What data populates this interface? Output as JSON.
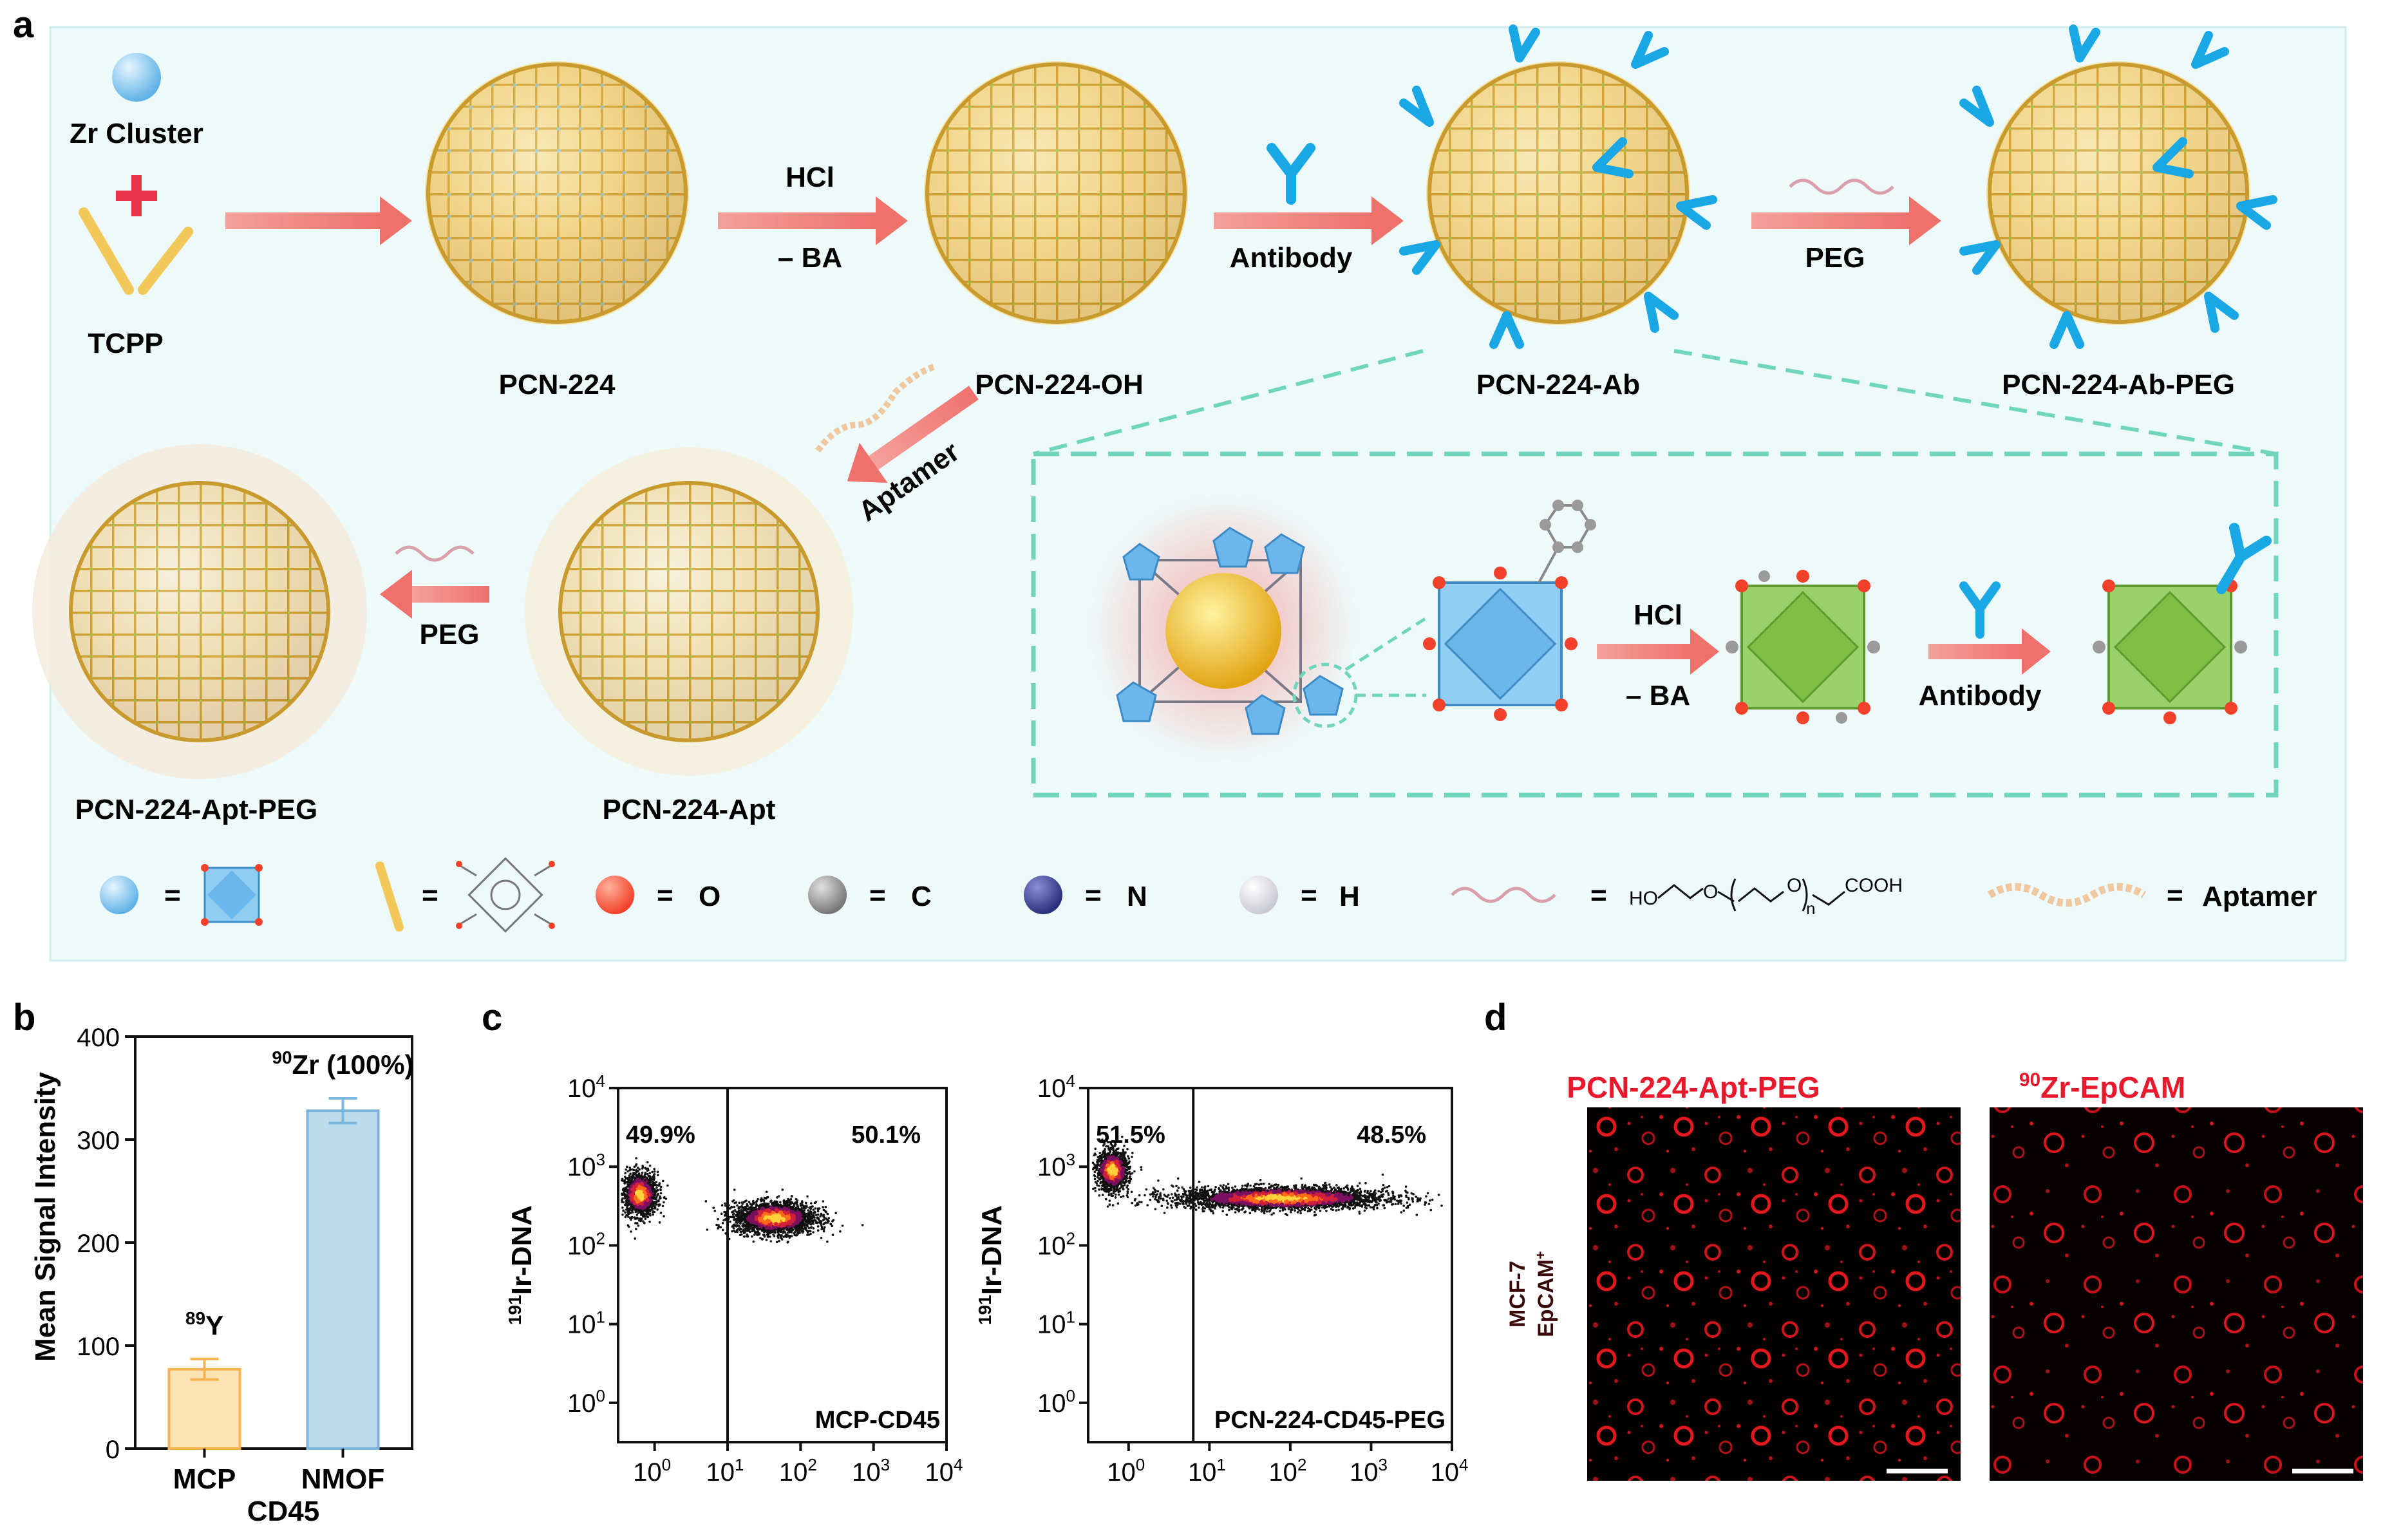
{
  "figure": {
    "panel_labels": {
      "a": "a",
      "b": "b",
      "c": "c",
      "d": "d"
    },
    "scheme": {
      "reagents": {
        "zr_cluster": "Zr Cluster",
        "tcpp": "TCPP"
      },
      "arrows": {
        "hcl": "HCl",
        "minus_ba": "– BA",
        "antibody": "Antibody",
        "peg": "PEG",
        "aptamer": "Aptamer",
        "peg2": "PEG"
      },
      "products": {
        "pcn224": "PCN-224",
        "pcn224_oh": "PCN-224-OH",
        "pcn224_ab": "PCN-224-Ab",
        "pcn224_ab_peg": "PCN-224-Ab-PEG",
        "pcn224_apt": "PCN-224-Apt",
        "pcn224_apt_peg": "PCN-224-Apt-PEG"
      },
      "inset": {
        "hcl": "HCl",
        "minus_ba": "– BA",
        "antibody": "Antibody"
      },
      "legend": {
        "eq": "=",
        "o": "O",
        "c": "C",
        "n": "N",
        "h": "H",
        "aptamer": "Aptamer",
        "peg_formula": {
          "ho": "HO",
          "o1": "O",
          "o2": "O",
          "n": "n",
          "cooh": "COOH"
        }
      },
      "colors": {
        "frame_bg": "#eefafa",
        "frame_border": "#b9e6e3",
        "arrow": "#f0827e",
        "framework_gold": "#e8b84a",
        "node_green": "#8bc34a",
        "node_blue": "#7fc4ec",
        "antibody": "#1aa7e6",
        "inset_dash": "#6fd6bd"
      }
    },
    "panel_b": {
      "chart_data": {
        "type": "bar",
        "categories": [
          "MCP",
          "NMOF"
        ],
        "group_label": "CD45",
        "values": [
          77,
          328
        ],
        "errors": [
          10,
          12
        ],
        "colors": [
          "#fde2b4",
          "#bcdcee"
        ],
        "edge_colors": [
          "#f4b34f",
          "#7bb6dd"
        ],
        "bar_labels": [
          {
            "pre": "89",
            "main": "Y"
          },
          {
            "pre": "90",
            "main": "Zr (100%)"
          }
        ],
        "ylabel": "Mean Signal Intensity",
        "ylim": [
          0,
          400
        ],
        "yticks": [
          "0",
          "100",
          "200",
          "300",
          "400"
        ]
      }
    },
    "panel_c": {
      "chart_data": [
        {
          "type": "scatter",
          "label": "MCP-CD45",
          "gate_x_log": 1.0,
          "left_pct": "49.9%",
          "right_pct": "50.1%",
          "ylabel": {
            "pre": "191",
            "main": "Ir-DNA"
          },
          "xlim_log": [
            -0.5,
            4
          ],
          "ylim_log": [
            -0.5,
            4
          ],
          "clusters": [
            {
              "x_log": -0.2,
              "y_log": 2.65,
              "sx": 0.12,
              "sy": 0.14,
              "n": 1400
            },
            {
              "x_log": 1.65,
              "y_log": 2.35,
              "sx": 0.28,
              "sy": 0.1,
              "n": 2600
            }
          ]
        },
        {
          "type": "scatter",
          "label": "PCN-224-CD45-PEG",
          "gate_x_log": 0.8,
          "left_pct": "51.5%",
          "right_pct": "48.5%",
          "ylabel": {
            "pre": "191",
            "main": "Ir-DNA"
          },
          "xlim_log": [
            -0.5,
            4
          ],
          "ylim_log": [
            -0.5,
            4
          ],
          "clusters": [
            {
              "x_log": -0.2,
              "y_log": 2.95,
              "sx": 0.1,
              "sy": 0.13,
              "n": 1200
            },
            {
              "x_log": 1.9,
              "y_log": 2.6,
              "sx": 0.65,
              "sy": 0.07,
              "n": 3400
            }
          ]
        }
      ],
      "tick_labels": {
        "x": [
          {
            "b": "10",
            "e": "0"
          },
          {
            "b": "10",
            "e": "1"
          },
          {
            "b": "10",
            "e": "2"
          },
          {
            "b": "10",
            "e": "3"
          },
          {
            "b": "10",
            "e": "4"
          }
        ],
        "y": [
          {
            "b": "10",
            "e": "0"
          },
          {
            "b": "10",
            "e": "1"
          },
          {
            "b": "10",
            "e": "2"
          },
          {
            "b": "10",
            "e": "3"
          },
          {
            "b": "10",
            "e": "4"
          }
        ]
      }
    },
    "panel_d": {
      "titles": [
        "PCN-224-Apt-PEG",
        {
          "pre": "90",
          "main": "Zr-EpCAM"
        }
      ],
      "row_label_line1": "MCF-7",
      "row_label_line2": {
        "main": "EpCAM",
        "sup": "+"
      },
      "title_color": "#e8192c"
    }
  }
}
